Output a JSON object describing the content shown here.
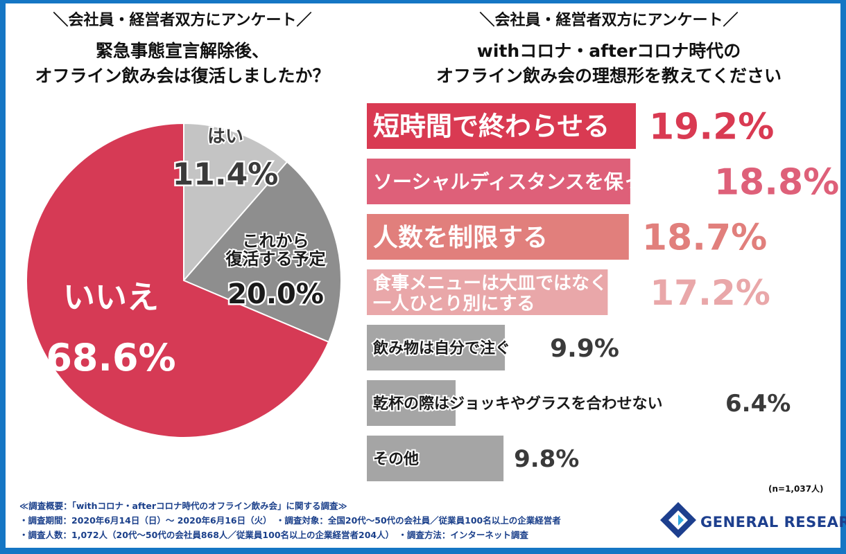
{
  "left": {
    "header": "＼会社員・経営者双方にアンケート／",
    "question_line1": "緊急事態宣言解除後、",
    "question_line2": "オフライン飲み会は復活しましたか？"
  },
  "right": {
    "header": "＼会社員・経営者双方にアンケート／",
    "question_line1": "withコロナ・afterコロナ時代の",
    "question_line2": "オフライン飲み会の理想形を教えてください"
  },
  "sample_note": "(n=1,037人)",
  "chart_data": [
    {
      "type": "pie",
      "slices": [
        {
          "label": "はい",
          "label_lines": [
            "はい"
          ],
          "value": 11.4,
          "value_text": "11.4%",
          "color": "#c4c4c4"
        },
        {
          "label": "これから復活する予定",
          "label_lines": [
            "これから",
            "復活する予定"
          ],
          "value": 20.0,
          "value_text": "20.0%",
          "color": "#8e8e8e"
        },
        {
          "label": "いいえ",
          "label_lines": [
            "いいえ"
          ],
          "value": 68.6,
          "value_text": "68.6%",
          "color": "#d63a55"
        }
      ]
    },
    {
      "type": "bar",
      "orientation": "horizontal",
      "categories": [
        [
          "短時間で終わらせる"
        ],
        [
          "ソーシャルディスタンスを保った座席"
        ],
        [
          "人数を制限する"
        ],
        [
          "食事メニューは大皿ではなく",
          "一人ひとり別にする"
        ],
        [
          "飲み物は自分で注ぐ"
        ],
        [
          "乾杯の際はジョッキやグラスを合わせない"
        ],
        [
          "その他"
        ]
      ],
      "values": [
        19.2,
        18.8,
        18.7,
        17.2,
        9.9,
        6.4,
        9.8
      ],
      "value_texts": [
        "19.2%",
        "18.8%",
        "18.7%",
        "17.2%",
        "9.9%",
        "6.4%",
        "9.8%"
      ],
      "colors": [
        "#d93a52",
        "#de6079",
        "#e17f7c",
        "#e9a7a9",
        "#a5a5a5",
        "#a5a5a5",
        "#a5a5a5"
      ]
    }
  ],
  "footer": {
    "line1": "≪調査概要：「withコロナ・afterコロナ時代のオフライン飲み会」に関する調査≫",
    "line2": "・調査期間：2020年6月14日（日）～ 2020年6月16日（火）　・調査対象：全国20代～50代の会社員／従業員100名以上の企業経営者",
    "line3": "・調査人数：1,072人（20代～50代の会社員868人／従業員100名以上の企業経営者204人）　・調査方法：インターネット調査"
  },
  "brand": {
    "name": "GENERAL RESEARCH",
    "logo_icon": "general-research-logo-icon"
  }
}
